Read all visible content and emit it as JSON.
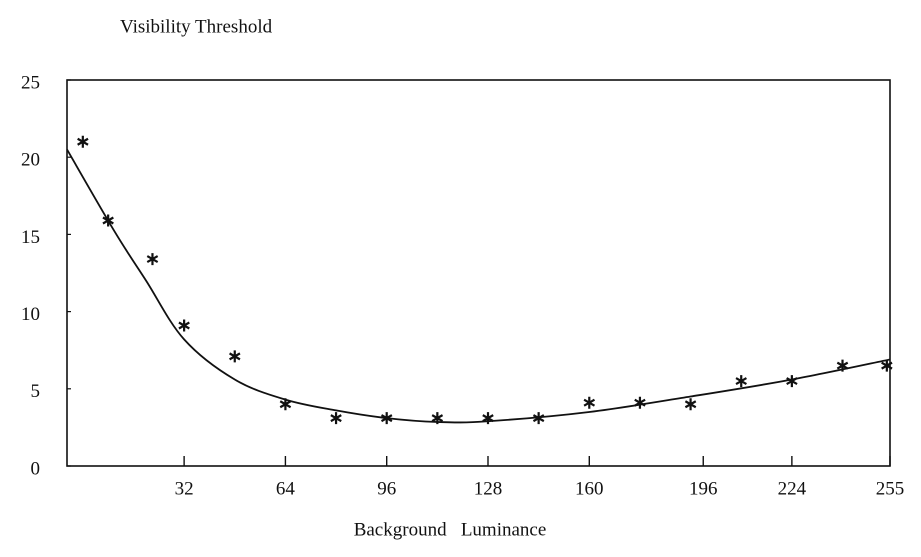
{
  "chart_data": {
    "type": "scatter",
    "title": "Visibility Threshold",
    "x_label": "Background   Luminance",
    "xlim": [
      -5,
      255
    ],
    "ylim": [
      0,
      25
    ],
    "xticks": [
      32,
      64,
      96,
      128,
      160,
      196,
      224,
      255
    ],
    "yticks": [
      0,
      5,
      10,
      15,
      20,
      25
    ],
    "series": [
      {
        "type": "scatter",
        "color": "#111111",
        "x": [
          0,
          8,
          22,
          32,
          48,
          64,
          80,
          96,
          112,
          128,
          144,
          160,
          176,
          192,
          208,
          224,
          240,
          254
        ],
        "values": [
          21,
          15.9,
          13.4,
          9.1,
          7.1,
          4.0,
          3.1,
          3.1,
          3.1,
          3.1,
          3.1,
          4.1,
          4.1,
          4.0,
          5.5,
          5.5,
          6.5,
          6.5
        ]
      },
      {
        "type": "line",
        "color": "#111111",
        "x": [
          -5,
          10,
          20,
          32,
          48,
          64,
          80,
          96,
          112,
          128,
          160,
          192,
          224,
          255
        ],
        "values": [
          20.5,
          15.2,
          12.0,
          8.2,
          5.6,
          4.3,
          3.6,
          3.1,
          2.85,
          2.9,
          3.5,
          4.5,
          5.6,
          6.9
        ]
      }
    ]
  }
}
